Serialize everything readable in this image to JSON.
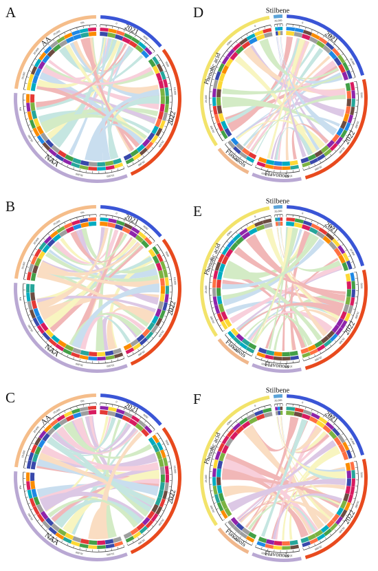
{
  "colors": {
    "AA": "#f5bd8a",
    "NAA": "#b9a8d3",
    "2021": "#3a55d6",
    "2022": "#e84a1e",
    "Phenolic acid": "#f2e36a",
    "Flavonols": "#b9a8d3",
    "Flavanols": "#f0b78c",
    "Stilbene": "#5ba3d9",
    "blue": "#a9cbe6",
    "red": "#ea8c8c",
    "pink": "#f5b3c6",
    "green": "#b9e0a2",
    "teal": "#a3d8cf",
    "yellow": "#f5ef9a",
    "purple": "#c7a7d6",
    "orange": "#f7c99e"
  },
  "panels": [
    {
      "letter": "A",
      "sectors": [
        {
          "name": "2021",
          "label": "2021",
          "span": 46
        },
        {
          "name": "2022",
          "label": "2022",
          "span": 98
        },
        {
          "name": "NAA",
          "label": "NAA",
          "span": 110
        },
        {
          "name": "AA",
          "label": "AA",
          "span": 78
        }
      ]
    },
    {
      "letter": "B",
      "sectors": [
        {
          "name": "2021",
          "label": "2021",
          "span": 46
        },
        {
          "name": "2022",
          "label": "2022",
          "span": 98
        },
        {
          "name": "NAA",
          "label": "NAA",
          "span": 110
        },
        {
          "name": "AA",
          "label": "",
          "span": 78
        }
      ]
    },
    {
      "letter": "C",
      "sectors": [
        {
          "name": "2021",
          "label": "2021",
          "span": 46
        },
        {
          "name": "2022",
          "label": "2022",
          "span": 98
        },
        {
          "name": "NAA",
          "label": "NAA",
          "span": 110
        },
        {
          "name": "AA",
          "label": "AA",
          "span": 78
        }
      ]
    },
    {
      "letter": "D",
      "sectors": [
        {
          "name": "2021",
          "label": "2021",
          "span": 70
        },
        {
          "name": "2022",
          "label": "2022",
          "span": 86
        },
        {
          "name": "Flavonols",
          "label": "Flavonols",
          "span": 34
        },
        {
          "name": "Flavanols",
          "label": "Flavanols",
          "span": 26
        },
        {
          "name": "Phenolic acid",
          "label": "Phenolic acid",
          "span": 112
        },
        {
          "name": "Stilbene",
          "label": "Stilbene",
          "span": 6
        }
      ]
    },
    {
      "letter": "E",
      "sectors": [
        {
          "name": "2021",
          "label": "2021",
          "span": 70
        },
        {
          "name": "2022",
          "label": "2022",
          "span": 86
        },
        {
          "name": "Flavonols",
          "label": "Flavonols",
          "span": 34
        },
        {
          "name": "Flavanols",
          "label": "Flavanols",
          "span": 26
        },
        {
          "name": "Phenolic acid",
          "label": "Phenolic acid",
          "span": 112
        },
        {
          "name": "Stilbene",
          "label": "Stilbene",
          "span": 6
        }
      ]
    },
    {
      "letter": "F",
      "sectors": [
        {
          "name": "2021",
          "label": "2021",
          "span": 70
        },
        {
          "name": "2022",
          "label": "2022",
          "span": 86
        },
        {
          "name": "Flavonols",
          "label": "Flavonols",
          "span": 34
        },
        {
          "name": "Flavanols",
          "label": "Flavanols",
          "span": 26
        },
        {
          "name": "Phenolic acid",
          "label": "Phenolic acid",
          "span": 112
        },
        {
          "name": "Stilbene",
          "label": "Stilbene",
          "span": 6
        }
      ]
    }
  ],
  "tick_labels": [
    "0",
    "5000",
    "10,000",
    "15,000",
    "20,000",
    "25,000",
    "0%",
    "100%"
  ]
}
